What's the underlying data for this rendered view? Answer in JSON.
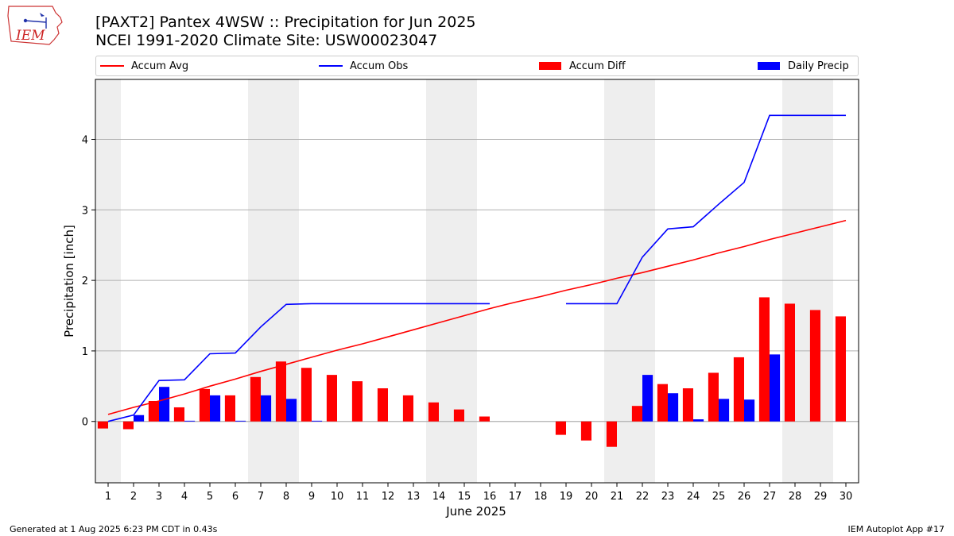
{
  "header": {
    "title": "[PAXT2] Pantex 4WSW :: Precipitation for Jun 2025",
    "subtitle": "NCEI 1991-2020 Climate Site: USW00023047",
    "logo_text": "IEM"
  },
  "footer": {
    "left": "Generated at 1 Aug 2025 6:23 PM CDT in 0.43s",
    "right": "IEM Autoplot App #17"
  },
  "legend": [
    {
      "label": "Accum Avg",
      "kind": "line",
      "color": "#ff0000"
    },
    {
      "label": "Accum Obs",
      "kind": "line",
      "color": "#0000ff"
    },
    {
      "label": "Accum Diff",
      "kind": "box",
      "color": "#ff0000"
    },
    {
      "label": "Daily Precip",
      "kind": "box",
      "color": "#0000ff"
    }
  ],
  "chart_data": {
    "type": "bar",
    "xlabel": "June 2025",
    "ylabel": "Precipitation [inch]",
    "x": [
      1,
      2,
      3,
      4,
      5,
      6,
      7,
      8,
      9,
      10,
      11,
      12,
      13,
      14,
      15,
      16,
      17,
      18,
      19,
      20,
      21,
      22,
      23,
      24,
      25,
      26,
      27,
      28,
      29,
      30
    ],
    "xlim": [
      0.5,
      30.5
    ],
    "ylim": [
      -0.87,
      4.85
    ],
    "yticks": [
      0,
      1,
      2,
      3,
      4
    ],
    "grid": "horizontal",
    "weekend_shading": [
      1,
      7,
      8,
      14,
      15,
      21,
      22,
      28,
      29
    ],
    "weekend_color": "#eeeeee",
    "series": [
      {
        "name": "Accum Avg",
        "type": "line",
        "color": "#ff0000",
        "values": [
          0.1,
          0.2,
          0.29,
          0.39,
          0.5,
          0.6,
          0.71,
          0.81,
          0.91,
          1.01,
          1.1,
          1.2,
          1.3,
          1.4,
          1.5,
          1.6,
          1.69,
          1.77,
          1.86,
          1.94,
          2.03,
          2.11,
          2.2,
          2.29,
          2.39,
          2.48,
          2.58,
          2.67,
          2.76,
          2.85
        ]
      },
      {
        "name": "Accum Obs",
        "type": "line",
        "color": "#0000ff",
        "values": [
          0.0,
          0.09,
          0.58,
          0.59,
          0.96,
          0.97,
          1.34,
          1.66,
          1.67,
          1.67,
          1.67,
          1.67,
          1.67,
          1.67,
          1.67,
          1.67,
          null,
          null,
          1.67,
          1.67,
          1.67,
          2.33,
          2.73,
          2.76,
          3.08,
          3.39,
          4.34,
          4.34,
          4.34,
          4.34
        ]
      },
      {
        "name": "Accum Diff",
        "type": "bar",
        "color": "#ff0000",
        "values": [
          -0.1,
          -0.11,
          0.29,
          0.2,
          0.46,
          0.37,
          0.63,
          0.85,
          0.76,
          0.66,
          0.57,
          0.47,
          0.37,
          0.27,
          0.17,
          0.07,
          null,
          null,
          -0.19,
          -0.27,
          -0.36,
          0.22,
          0.53,
          0.47,
          0.69,
          0.91,
          1.76,
          1.67,
          1.58,
          1.49
        ]
      },
      {
        "name": "Daily Precip",
        "type": "bar",
        "color": "#0000ff",
        "values": [
          0,
          0.09,
          0.49,
          0.01,
          0.37,
          0.01,
          0.37,
          0.32,
          0.01,
          0,
          0,
          0,
          0,
          0,
          0,
          0,
          null,
          null,
          0,
          0,
          0,
          0.66,
          0.4,
          0.03,
          0.32,
          0.31,
          0.95,
          0,
          0,
          0
        ]
      }
    ]
  }
}
